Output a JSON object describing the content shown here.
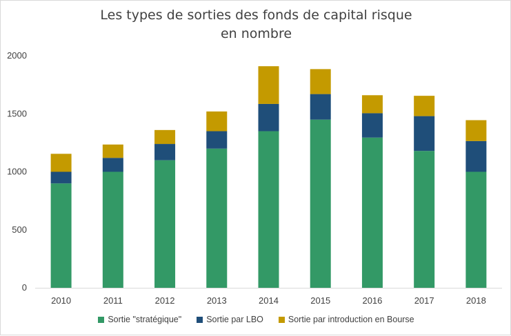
{
  "chart_data": {
    "type": "bar",
    "stacked": true,
    "title": "Les types de sorties des fonds de capital risque",
    "subtitle": "en nombre",
    "xlabel": "",
    "ylabel": "",
    "ylim": [
      0,
      2000
    ],
    "yticks": [
      0,
      500,
      1000,
      1500,
      2000
    ],
    "grid": false,
    "legend_position": "bottom",
    "categories": [
      "2010",
      "2011",
      "2012",
      "2013",
      "2014",
      "2015",
      "2016",
      "2017",
      "2018"
    ],
    "series": [
      {
        "name": "Sortie \"stratégique\"",
        "color": "#339966",
        "values": [
          900,
          1000,
          1100,
          1200,
          1350,
          1450,
          1295,
          1180,
          1000
        ]
      },
      {
        "name": "Sortie par LBO",
        "color": "#1f4e79",
        "values": [
          100,
          120,
          140,
          150,
          235,
          220,
          210,
          300,
          265
        ]
      },
      {
        "name": "Sortie par introduction en Bourse",
        "color": "#c49a00",
        "values": [
          155,
          115,
          120,
          170,
          325,
          215,
          155,
          175,
          180
        ]
      }
    ]
  }
}
